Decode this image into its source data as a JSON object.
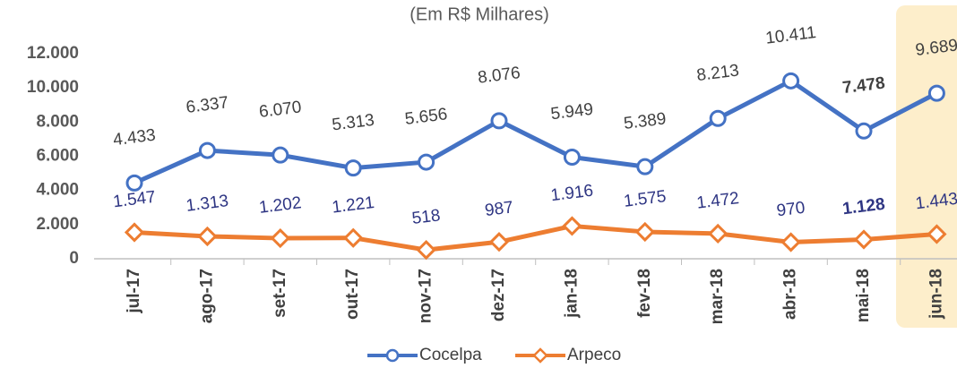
{
  "chart_data": {
    "type": "line",
    "subtitle": "(Em R$ Milhares)",
    "categories": [
      "jul-17",
      "ago-17",
      "set-17",
      "out-17",
      "nov-17",
      "dez-17",
      "jan-18",
      "fev-18",
      "mar-18",
      "abr-18",
      "mai-18",
      "jun-18"
    ],
    "series": [
      {
        "name": "Cocelpa",
        "color": "#4472c4",
        "values": [
          4433,
          6337,
          6070,
          5313,
          5656,
          8076,
          5949,
          5389,
          8213,
          10411,
          7478,
          9689
        ],
        "value_labels": [
          "4.433",
          "6.337",
          "6.070",
          "5.313",
          "5.656",
          "8.076",
          "5.949",
          "5.389",
          "8.213",
          "10.411",
          "7.478",
          "9.689"
        ]
      },
      {
        "name": "Arpeco",
        "color": "#ed7d31",
        "values": [
          1547,
          1313,
          1202,
          1221,
          518,
          987,
          1916,
          1575,
          1472,
          970,
          1128,
          1443
        ],
        "value_labels": [
          "1.547",
          "1.313",
          "1.202",
          "1.221",
          "518",
          "987",
          "1.916",
          "1.575",
          "1.472",
          "970",
          "1.128",
          "1.443"
        ]
      }
    ],
    "ylim": [
      0,
      12000
    ],
    "yticks": [
      0,
      {
        "value": 2000,
        "label": "2.000"
      },
      {
        "value": 4000,
        "label": "4.000"
      },
      {
        "value": 6000,
        "label": "6.000"
      },
      {
        "value": 8000,
        "label": "8.000"
      },
      {
        "value": 10000,
        "label": "10.000"
      },
      {
        "value": 12000,
        "label": "12.000"
      }
    ],
    "legend": "bottom"
  }
}
